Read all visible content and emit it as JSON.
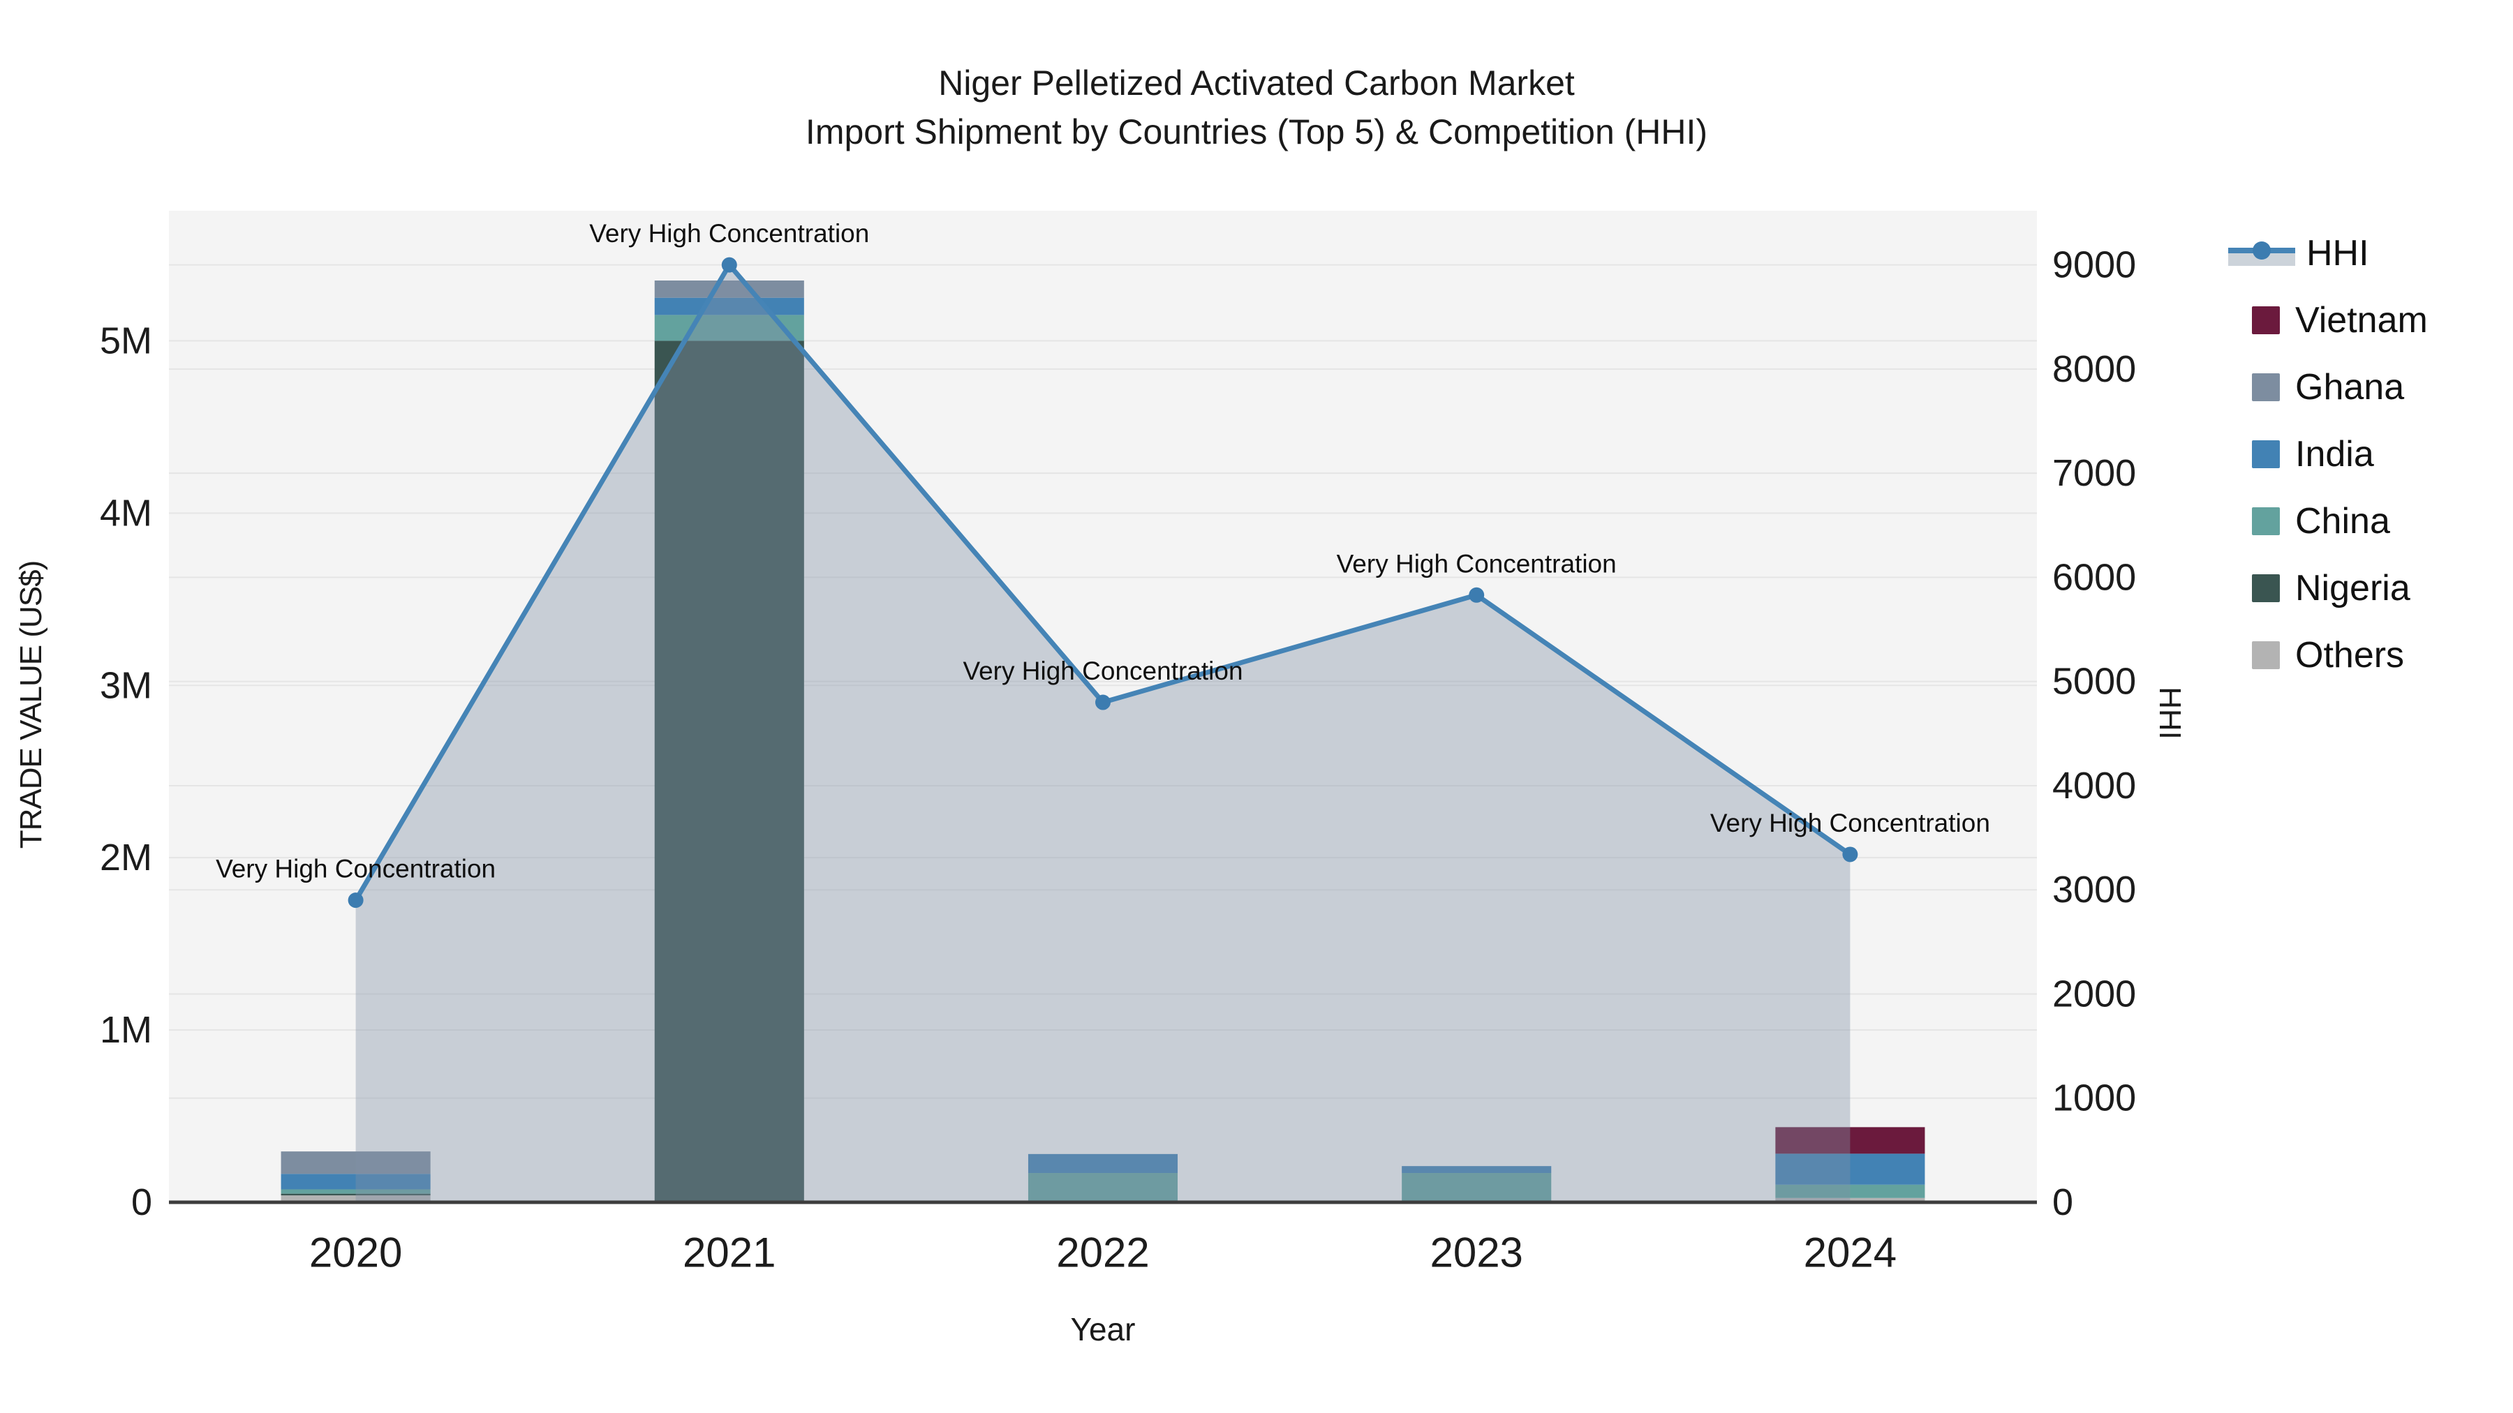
{
  "title": {
    "line1": "Niger Pelletized Activated Carbon Market",
    "line2": "Import Shipment by Countries (Top 5) & Competition (HHI)"
  },
  "axes": {
    "left": {
      "title": "TRADE VALUE (US$)"
    },
    "right": {
      "title": "HHI"
    },
    "x": {
      "title": "Year"
    }
  },
  "legend": {
    "items": [
      {
        "label": "HHI",
        "kind": "line",
        "color": "#4584b6"
      },
      {
        "label": "Vietnam",
        "kind": "swatch",
        "color": "#6b1a3d"
      },
      {
        "label": "Ghana",
        "kind": "swatch",
        "color": "#7d8da0"
      },
      {
        "label": "India",
        "kind": "swatch",
        "color": "#4282b4"
      },
      {
        "label": "China",
        "kind": "swatch",
        "color": "#63a29e"
      },
      {
        "label": "Nigeria",
        "kind": "swatch",
        "color": "#3a5551"
      },
      {
        "label": "Others",
        "kind": "swatch",
        "color": "#b3b3b3"
      }
    ]
  },
  "chart_data": {
    "type": "combo: stacked-bar (left axis) + line-area (right axis)",
    "categories": [
      "2020",
      "2021",
      "2022",
      "2023",
      "2024"
    ],
    "bar_value_unit": "US$",
    "bar_series_bottom_to_top": [
      {
        "name": "Others",
        "color": "#b3b3b3",
        "values": [
          40000,
          0,
          10000,
          0,
          25000
        ]
      },
      {
        "name": "Nigeria",
        "color": "#3a5551",
        "values": [
          10000,
          5000000,
          0,
          0,
          0
        ]
      },
      {
        "name": "China",
        "color": "#63a29e",
        "values": [
          25000,
          150000,
          160000,
          170000,
          77000
        ]
      },
      {
        "name": "India",
        "color": "#4282b4",
        "values": [
          90000,
          100000,
          110000,
          40000,
          180000
        ]
      },
      {
        "name": "Ghana",
        "color": "#7d8da0",
        "values": [
          130000,
          100000,
          0,
          0,
          0
        ]
      },
      {
        "name": "Vietnam",
        "color": "#6b1a3d",
        "values": [
          0,
          0,
          0,
          0,
          154000
        ]
      }
    ],
    "line_series": {
      "name": "HHI",
      "axis": "right",
      "color": "#4584b6",
      "marker_color": "#3c7cb0",
      "area_fill": "rgba(128,144,166,0.38)",
      "values": [
        2900,
        9000,
        4800,
        5830,
        3340
      ]
    },
    "annotations": [
      "Very High Concentration",
      "Very High Concentration",
      "Very High Concentration",
      "Very High Concentration",
      "Very High Concentration"
    ],
    "y_left": {
      "ticks": [
        {
          "v": 0,
          "t": "0"
        },
        {
          "v": 1000000,
          "t": "1M"
        },
        {
          "v": 2000000,
          "t": "2M"
        },
        {
          "v": 3000000,
          "t": "3M"
        },
        {
          "v": 4000000,
          "t": "4M"
        },
        {
          "v": 5000000,
          "t": "5M"
        }
      ],
      "range": [
        0,
        5755000
      ]
    },
    "y_right": {
      "ticks": [
        {
          "v": 0,
          "t": "0"
        },
        {
          "v": 1000,
          "t": "1000"
        },
        {
          "v": 2000,
          "t": "2000"
        },
        {
          "v": 3000,
          "t": "3000"
        },
        {
          "v": 4000,
          "t": "4000"
        },
        {
          "v": 5000,
          "t": "5000"
        },
        {
          "v": 6000,
          "t": "6000"
        },
        {
          "v": 7000,
          "t": "7000"
        },
        {
          "v": 8000,
          "t": "8000"
        },
        {
          "v": 9000,
          "t": "9000"
        }
      ],
      "range": [
        0,
        9520
      ]
    },
    "xlabel": "Year",
    "grid": true,
    "plot_background": "#f4f4f4",
    "baseline_color": "#3d3d3d",
    "gridline_color": "#e5e5e5",
    "legend_position": "right"
  }
}
